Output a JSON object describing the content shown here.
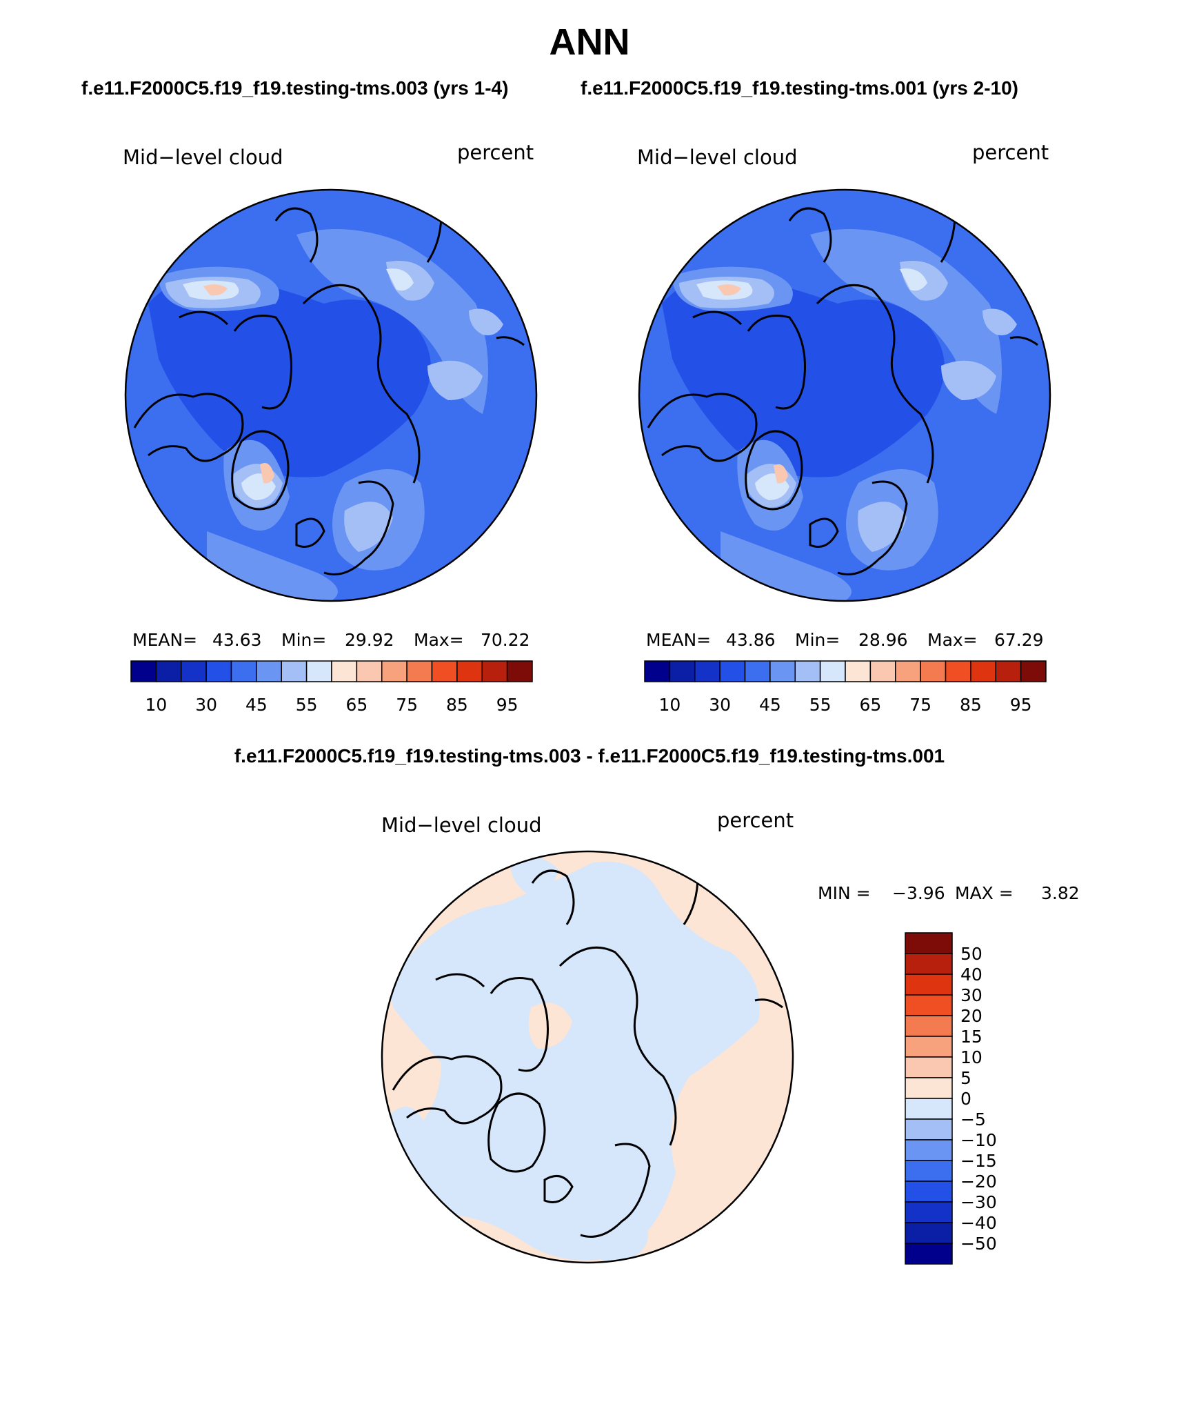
{
  "page": {
    "title": "ANN",
    "case_left": "f.e11.F2000C5.f19_f19.testing-tms.003 (yrs 1-4)",
    "case_right": "f.e11.F2000C5.f19_f19.testing-tms.001 (yrs 2-10)",
    "diff_title": "f.e11.F2000C5.f19_f19.testing-tms.003 - f.e11.F2000C5.f19_f19.testing-tms.001"
  },
  "panels": [
    {
      "variable": "Mid−level cloud",
      "units": "percent",
      "mean_label": "MEAN=",
      "mean": "43.63",
      "min_label": "Min=",
      "min": "29.92",
      "max_label": "Max=",
      "max": "70.22",
      "colorbar_ticks": [
        "10",
        "30",
        "45",
        "55",
        "65",
        "75",
        "85",
        "95"
      ]
    },
    {
      "variable": "Mid−level cloud",
      "units": "percent",
      "mean_label": "MEAN=",
      "mean": "43.86",
      "min_label": "Min=",
      "min": "28.96",
      "max_label": "Max=",
      "max": "67.29",
      "colorbar_ticks": [
        "10",
        "30",
        "45",
        "55",
        "65",
        "75",
        "85",
        "95"
      ]
    }
  ],
  "diff_panel": {
    "variable": "Mid−level cloud",
    "units": "percent",
    "min_label": "MIN =",
    "min": "−3.96",
    "max_label": "MAX =",
    "max": "3.82",
    "colorbar_ticks": [
      "50",
      "40",
      "30",
      "20",
      "15",
      "10",
      "5",
      "0",
      "−5",
      "−10",
      "−15",
      "−20",
      "−30",
      "−40",
      "−50"
    ]
  },
  "colors": {
    "abs_scale": [
      "#00008c",
      "#0a1ea6",
      "#1432c8",
      "#2350e6",
      "#3c6ef0",
      "#6b95f2",
      "#a4bff6",
      "#d6e6fb",
      "#fde5d6",
      "#fac8b0",
      "#f7a27d",
      "#f47a4f",
      "#ef4f23",
      "#de3410",
      "#b6200d",
      "#7d0b08"
    ],
    "diff_scale": [
      "#00008c",
      "#0a1ea6",
      "#1432c8",
      "#2350e6",
      "#3c6ef0",
      "#6b95f2",
      "#a4bff6",
      "#d6e6fb",
      "#fde5d6",
      "#fac8b0",
      "#f7a27d",
      "#f47a4f",
      "#ef4f23",
      "#de3410",
      "#b6200d",
      "#7d0b08"
    ],
    "coast": "#000000"
  }
}
